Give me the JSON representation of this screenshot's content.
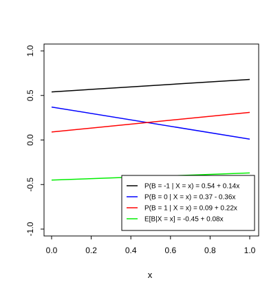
{
  "chart_data": {
    "type": "line",
    "title": "",
    "xlabel": "x",
    "ylabel": "",
    "xlim": [
      0.0,
      1.0
    ],
    "ylim": [
      -1.0,
      1.0
    ],
    "x_ticks": [
      "0.0",
      "0.2",
      "0.4",
      "0.6",
      "0.8",
      "1.0"
    ],
    "y_ticks": [
      "-1.0",
      "-0.5",
      "0.0",
      "0.5",
      "1.0"
    ],
    "grid": false,
    "legend_position": "bottom-right",
    "series": [
      {
        "name": "P(B = -1 | X = x) = 0.54 + 0.14x",
        "color": "#000000",
        "x": [
          0,
          1
        ],
        "y": [
          0.54,
          0.68
        ]
      },
      {
        "name": "P(B = 0 | X = x) =  0.37 - 0.36x",
        "color": "#0000ff",
        "x": [
          0,
          1
        ],
        "y": [
          0.37,
          0.01
        ]
      },
      {
        "name": "P(B = 1 | X = x) = 0.09 + 0.22x",
        "color": "#ff0000",
        "x": [
          0,
          1
        ],
        "y": [
          0.09,
          0.31
        ]
      },
      {
        "name": "E[B|X = x] = -0.45 + 0.08x",
        "color": "#00ee00",
        "x": [
          0,
          1
        ],
        "y": [
          -0.45,
          -0.37
        ]
      }
    ]
  }
}
